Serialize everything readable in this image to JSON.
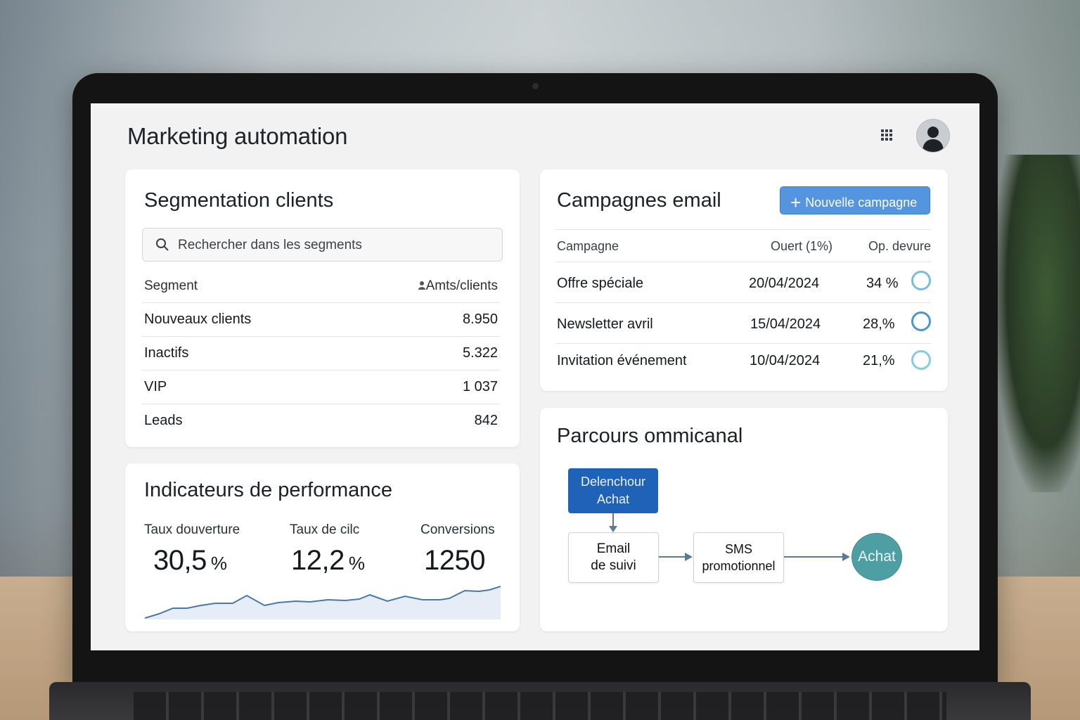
{
  "app": {
    "title": "Marketing automation"
  },
  "segmentation": {
    "title": "Segmentation clients",
    "search_placeholder": "Rechercher dans les segments",
    "columns": {
      "segment": "Segment",
      "count": "Amts/clients"
    },
    "rows": [
      {
        "name": "Nouveaux clients",
        "count": "8.950"
      },
      {
        "name": "Inactifs",
        "count": "5.322"
      },
      {
        "name": "VIP",
        "count": "1 037"
      },
      {
        "name": "Leads",
        "count": "842"
      }
    ]
  },
  "performance": {
    "title": "Indicateurs de performance",
    "kpis": [
      {
        "label": "Taux douverture",
        "value": "30,5",
        "unit": "%"
      },
      {
        "label": "Taux de cilc",
        "value": "12,2",
        "unit": "%"
      },
      {
        "label": "Conversions",
        "value": "1250",
        "unit": ""
      }
    ]
  },
  "campaigns": {
    "title": "Campagnes email",
    "new_button": "Nouvelle campagne",
    "columns": {
      "campaign": "Campagne",
      "opened": "Ouert (1%)",
      "rate": "Op. devure"
    },
    "rows": [
      {
        "name": "Offre spéciale",
        "date": "20/04/2024",
        "rate": "34 %"
      },
      {
        "name": "Newsletter avril",
        "date": "15/04/2024",
        "rate": "28,%"
      },
      {
        "name": "Invitation événement",
        "date": "10/04/2024",
        "rate": "21,%"
      }
    ]
  },
  "journey": {
    "title": "Parcours ommicanal",
    "trigger": {
      "line1": "Delenchour",
      "line2": "Achat"
    },
    "email": {
      "line1": "Email",
      "line2": "de suivi"
    },
    "sms": {
      "line1": "SMS",
      "line2": "promotionnel"
    },
    "end": "Achat"
  },
  "colors": {
    "accent": "#5595e0",
    "trigger": "#1f62b8",
    "end_node": "#4d9fa3",
    "ring": "#6fb5d8",
    "spark": "#4a78a8"
  },
  "icons": {
    "apps": "grid-icon",
    "avatar": "user-icon",
    "search": "search-icon",
    "add": "plus-icon"
  }
}
